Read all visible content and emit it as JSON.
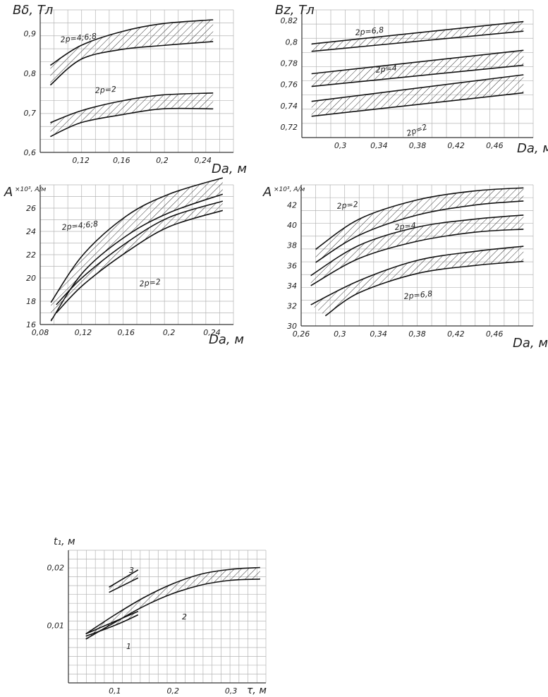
{
  "chart_data": [
    {
      "type": "area",
      "ylabel": "Bδ, Тл",
      "xlabel": "Da, м",
      "x_ticks": [
        "0,12",
        "0,16",
        "0,2",
        "0,24"
      ],
      "y_ticks": [
        "0,6",
        "0,7",
        "0,8",
        "0,9"
      ],
      "xlim": [
        0.08,
        0.27
      ],
      "ylim": [
        0.6,
        0.96
      ],
      "grid": true,
      "series": [
        {
          "name": "2p=4;6;8",
          "lower": {
            "x": [
              0.09,
              0.12,
              0.16,
              0.2,
              0.25
            ],
            "y": [
              0.77,
              0.835,
              0.86,
              0.87,
              0.88
            ]
          },
          "upper": {
            "x": [
              0.09,
              0.12,
              0.16,
              0.2,
              0.25
            ],
            "y": [
              0.82,
              0.87,
              0.905,
              0.925,
              0.935
            ]
          }
        },
        {
          "name": "2p=2",
          "lower": {
            "x": [
              0.09,
              0.12,
              0.16,
              0.2,
              0.25
            ],
            "y": [
              0.64,
              0.675,
              0.695,
              0.71,
              0.71
            ]
          },
          "upper": {
            "x": [
              0.09,
              0.12,
              0.16,
              0.2,
              0.25
            ],
            "y": [
              0.675,
              0.705,
              0.73,
              0.745,
              0.75
            ]
          }
        }
      ]
    },
    {
      "type": "area",
      "ylabel": "Bz, Тл",
      "xlabel": "Da, м",
      "x_ticks": [
        "0,3",
        "0,34",
        "0,38",
        "0,42",
        "0,46"
      ],
      "y_ticks": [
        "0,72",
        "0,74",
        "0,76",
        "0,78",
        "0,8",
        "0,82"
      ],
      "xlim": [
        0.26,
        0.5
      ],
      "ylim": [
        0.71,
        0.83
      ],
      "grid": true,
      "series": [
        {
          "name": "2p=6,8",
          "lower": {
            "x": [
              0.27,
              0.49
            ],
            "y": [
              0.791,
              0.81
            ]
          },
          "upper": {
            "x": [
              0.27,
              0.49
            ],
            "y": [
              0.798,
              0.819
            ]
          }
        },
        {
          "name": "2p=4",
          "lower": {
            "x": [
              0.27,
              0.49
            ],
            "y": [
              0.758,
              0.778
            ]
          },
          "upper": {
            "x": [
              0.27,
              0.49
            ],
            "y": [
              0.77,
              0.792
            ]
          }
        },
        {
          "name": "2p=2",
          "lower": {
            "x": [
              0.27,
              0.49
            ],
            "y": [
              0.73,
              0.752
            ]
          },
          "upper": {
            "x": [
              0.27,
              0.49
            ],
            "y": [
              0.744,
              0.769
            ]
          }
        }
      ]
    },
    {
      "type": "area",
      "ylabel": "A",
      "ylabel_unit": "×10³, А/м",
      "xlabel": "Da, м",
      "x_ticks": [
        "0,08",
        "0,12",
        "0,16",
        "0,2",
        "0,24"
      ],
      "y_ticks": [
        "16",
        "18",
        "20",
        "22",
        "24",
        "26"
      ],
      "xlim": [
        0.08,
        0.26
      ],
      "ylim": [
        16,
        28
      ],
      "grid": true,
      "series": [
        {
          "name": "2p=4;6;8",
          "lower": {
            "x": [
              0.09,
              0.12,
              0.16,
              0.2,
              0.25
            ],
            "y": [
              16.3,
              20.5,
              23.6,
              25.6,
              27.2
            ]
          },
          "upper": {
            "x": [
              0.09,
              0.12,
              0.16,
              0.2,
              0.25
            ],
            "y": [
              17.9,
              22.0,
              25.3,
              27.2,
              28.6
            ]
          }
        },
        {
          "name": "2p=2",
          "lower": {
            "x": [
              0.095,
              0.12,
              0.16,
              0.2,
              0.25
            ],
            "y": [
              17.0,
              19.4,
              22.2,
              24.4,
              25.8
            ]
          },
          "upper": {
            "x": [
              0.095,
              0.12,
              0.16,
              0.2,
              0.25
            ],
            "y": [
              17.7,
              20.1,
              23.0,
              25.2,
              26.6
            ]
          }
        }
      ]
    },
    {
      "type": "area",
      "ylabel": "A",
      "ylabel_unit": "×10³, А/м",
      "xlabel": "Da, м",
      "x_ticks": [
        "0,26",
        "0,3",
        "0,34",
        "0,38",
        "0,42",
        "0,46"
      ],
      "y_ticks": [
        "30",
        "32",
        "34",
        "36",
        "38",
        "40",
        "42"
      ],
      "xlim": [
        0.26,
        0.5
      ],
      "ylim": [
        30,
        44
      ],
      "grid": true,
      "series": [
        {
          "name": "2p=2",
          "lower": {
            "x": [
              0.275,
              0.32,
              0.38,
              0.44,
              0.49
            ],
            "y": [
              36.3,
              39.0,
              41.0,
              42.0,
              42.4
            ]
          },
          "upper": {
            "x": [
              0.275,
              0.32,
              0.38,
              0.44,
              0.49
            ],
            "y": [
              37.6,
              40.6,
              42.5,
              43.4,
              43.7
            ]
          }
        },
        {
          "name": "2p=4",
          "lower": {
            "x": [
              0.27,
              0.32,
              0.38,
              0.44,
              0.49
            ],
            "y": [
              34.0,
              36.7,
              38.4,
              39.3,
              39.6
            ]
          },
          "upper": {
            "x": [
              0.27,
              0.32,
              0.38,
              0.44,
              0.49
            ],
            "y": [
              35.0,
              38.0,
              39.8,
              40.6,
              41.0
            ]
          }
        },
        {
          "name": "2p=6,8",
          "lower": {
            "x": [
              0.285,
              0.32,
              0.38,
              0.44,
              0.49
            ],
            "y": [
              31.0,
              33.3,
              35.2,
              36.0,
              36.4
            ]
          },
          "upper": {
            "x": [
              0.27,
              0.32,
              0.38,
              0.44,
              0.49
            ],
            "y": [
              32.1,
              34.5,
              36.5,
              37.4,
              37.9
            ]
          }
        }
      ]
    },
    {
      "type": "area",
      "ylabel": "t₁, м",
      "xlabel": "τ, м",
      "x_ticks": [
        "0,1",
        "0,2",
        "0,3"
      ],
      "y_ticks": [
        "0,01",
        "0,02"
      ],
      "xlim": [
        0.02,
        0.36
      ],
      "ylim": [
        0,
        0.023
      ],
      "grid": true,
      "series": [
        {
          "name": "1",
          "lower": {
            "x": [
              0.05,
              0.08,
              0.11,
              0.14
            ],
            "y": [
              0.0081,
              0.0092,
              0.0104,
              0.0118
            ]
          },
          "upper": {
            "x": [
              0.05,
              0.08,
              0.11,
              0.14
            ],
            "y": [
              0.0085,
              0.0098,
              0.0111,
              0.0124
            ]
          }
        },
        {
          "name": "2",
          "lower": {
            "x": [
              0.05,
              0.1,
              0.15,
              0.2,
              0.25,
              0.3,
              0.35
            ],
            "y": [
              0.0076,
              0.0105,
              0.0133,
              0.0155,
              0.017,
              0.0178,
              0.018
            ]
          },
          "upper": {
            "x": [
              0.05,
              0.1,
              0.15,
              0.2,
              0.25,
              0.3,
              0.35
            ],
            "y": [
              0.0085,
              0.0118,
              0.0148,
              0.0172,
              0.0189,
              0.0197,
              0.02
            ]
          }
        },
        {
          "name": "3",
          "lower": {
            "x": [
              0.09,
              0.14
            ],
            "y": [
              0.0157,
              0.0182
            ]
          },
          "upper": {
            "x": [
              0.09,
              0.14
            ],
            "y": [
              0.0166,
              0.0196
            ]
          }
        }
      ]
    }
  ]
}
